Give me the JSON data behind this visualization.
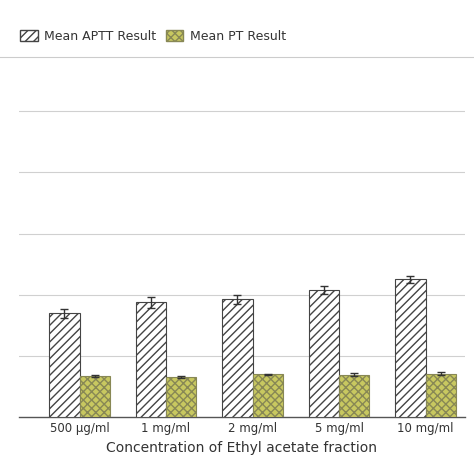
{
  "categories": [
    "500 μg/ml",
    "1 mg/ml",
    "2 mg/ml",
    "5 mg/ml",
    "10 mg/ml"
  ],
  "aptt_values": [
    34.0,
    37.5,
    38.5,
    41.5,
    45.0
  ],
  "aptt_errors": [
    1.5,
    1.8,
    1.5,
    1.2,
    1.0
  ],
  "pt_values": [
    13.5,
    13.2,
    14.0,
    13.8,
    14.2
  ],
  "pt_errors": [
    0.4,
    0.3,
    0.2,
    0.5,
    0.4
  ],
  "xlabel": "Concentration of Ethyl acetate fraction",
  "legend_aptt": "Mean APTT Result",
  "legend_pt": "Mean PT Result",
  "ylim": [
    0,
    110
  ],
  "bar_width": 0.35,
  "background_color": "#ffffff",
  "grid_color": "#d0d0d0",
  "grid_y_ticks": [
    20,
    40,
    60,
    80,
    100
  ]
}
